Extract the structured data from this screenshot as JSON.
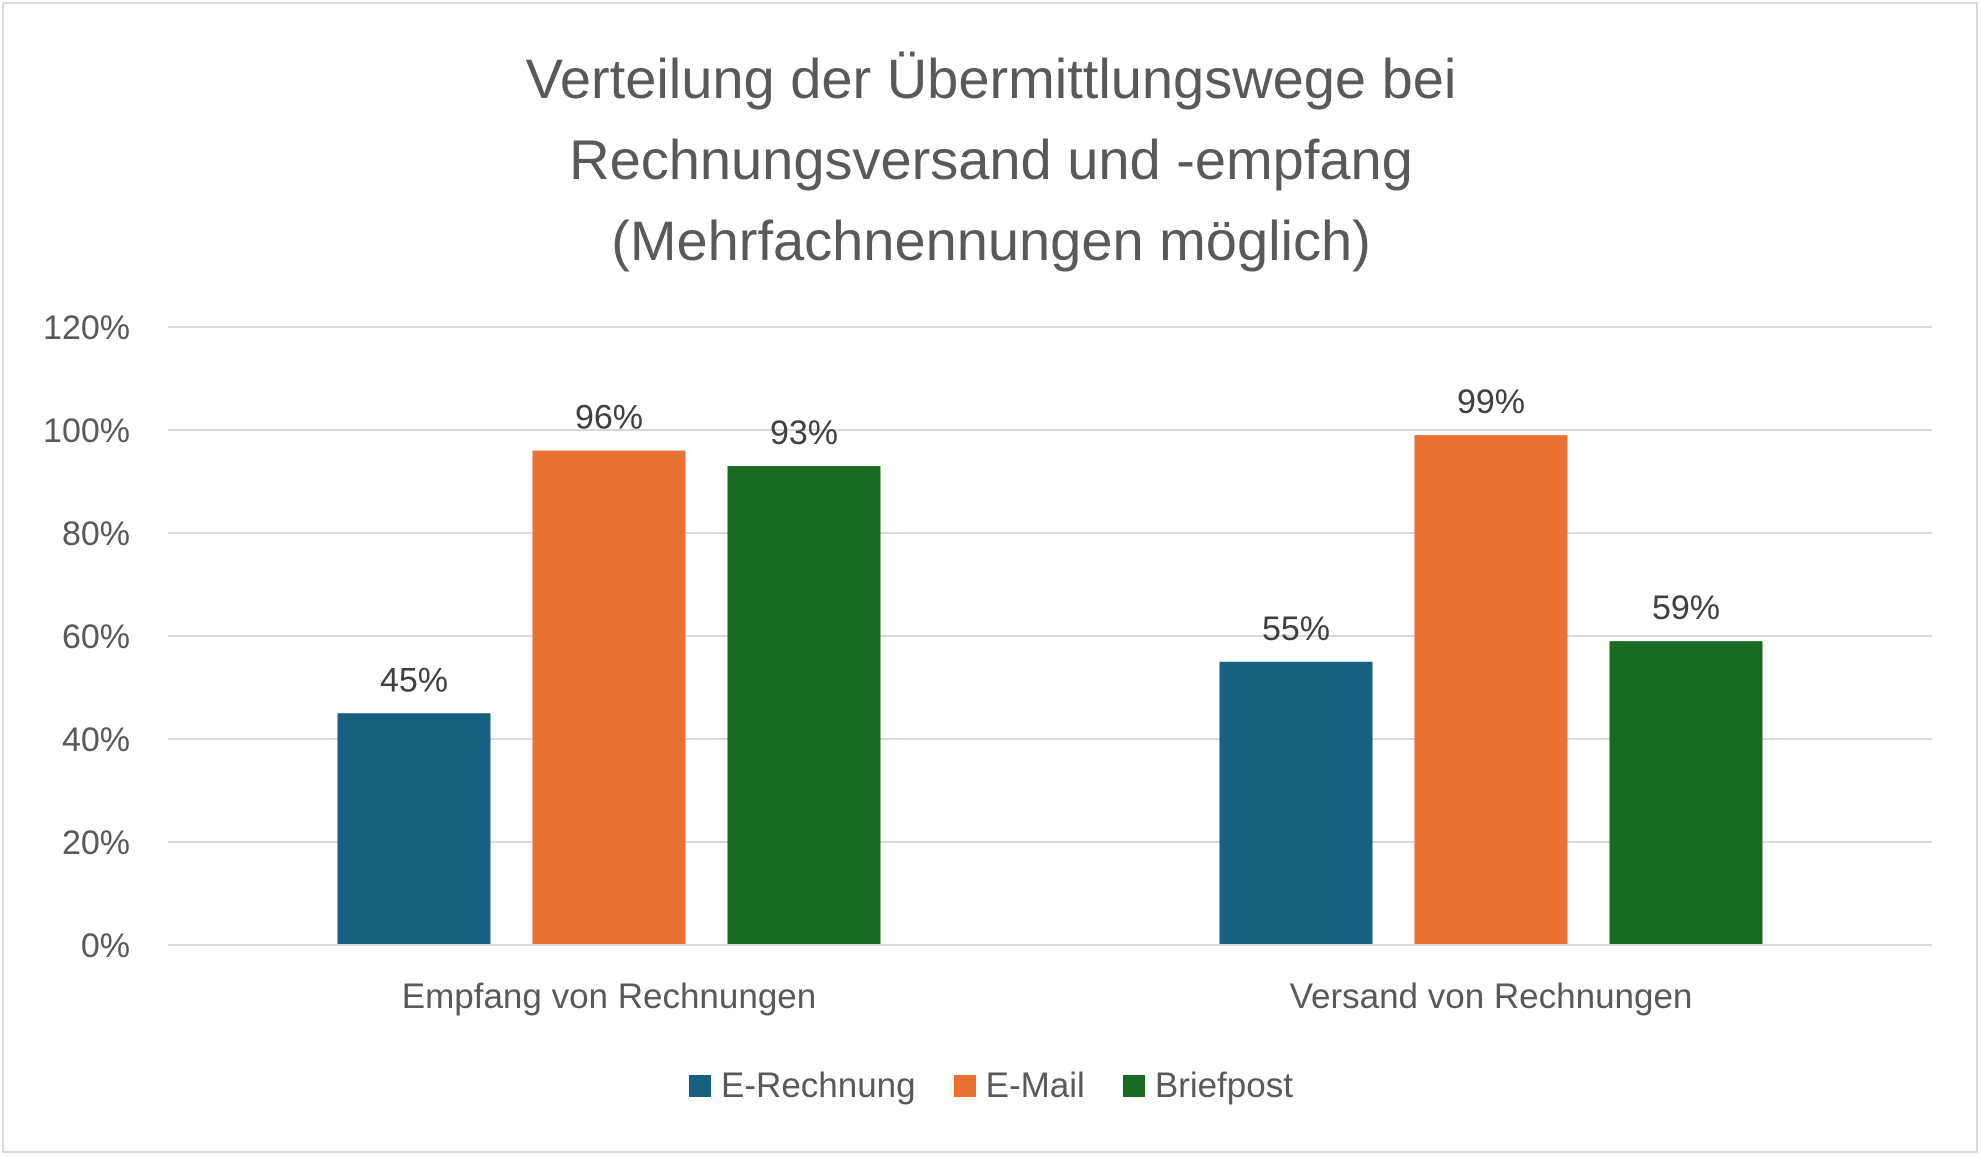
{
  "chart_data": {
    "type": "bar",
    "title": "Verteilung der Übermittlungswege bei Rechnungsversand und -empfang (Mehrfachnennungen möglich)",
    "title_lines": [
      "Verteilung der Übermittlungswege bei",
      "Rechnungsversand und -empfang",
      "(Mehrfachnennungen möglich)"
    ],
    "categories": [
      "Empfang von Rechnungen",
      "Versand von Rechnungen"
    ],
    "series": [
      {
        "name": "E-Rechnung",
        "values": [
          45,
          55
        ],
        "labels": [
          "45%",
          "55%"
        ],
        "color": "#17607f"
      },
      {
        "name": "E-Mail",
        "values": [
          96,
          99
        ],
        "labels": [
          "96%",
          "99%"
        ],
        "color": "#e97132"
      },
      {
        "name": "Briefpost",
        "values": [
          93,
          59
        ],
        "labels": [
          "93%",
          "59%"
        ],
        "color": "#196b24"
      }
    ],
    "ylim": [
      0,
      120
    ],
    "yticks": [
      0,
      20,
      40,
      60,
      80,
      100,
      120
    ],
    "ytick_labels": [
      "0%",
      "20%",
      "40%",
      "60%",
      "80%",
      "100%",
      "120%"
    ],
    "xlabel": "",
    "ylabel": "",
    "grid": true,
    "gridline_color": "#d9d9d9",
    "legend_position": "bottom"
  }
}
